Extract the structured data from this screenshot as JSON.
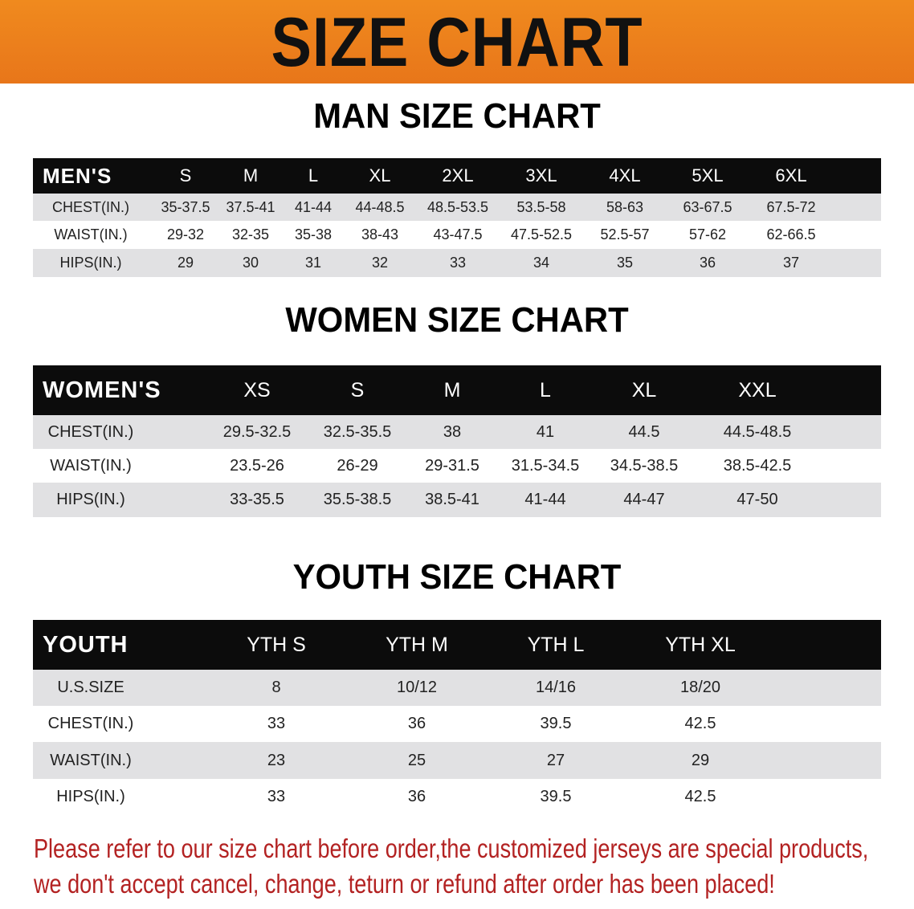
{
  "banner_title": "SIZE CHART",
  "men": {
    "title": "MAN SIZE CHART",
    "header": [
      "MEN'S",
      "S",
      "M",
      "L",
      "XL",
      "2XL",
      "3XL",
      "4XL",
      "5XL",
      "6XL"
    ],
    "rows": [
      [
        "CHEST(IN.)",
        "35-37.5",
        "37.5-41",
        "41-44",
        "44-48.5",
        "48.5-53.5",
        "53.5-58",
        "58-63",
        "63-67.5",
        "67.5-72"
      ],
      [
        "WAIST(IN.)",
        "29-32",
        "32-35",
        "35-38",
        "38-43",
        "43-47.5",
        "47.5-52.5",
        "52.5-57",
        "57-62",
        "62-66.5"
      ],
      [
        "HIPS(IN.)",
        "29",
        "30",
        "31",
        "32",
        "33",
        "34",
        "35",
        "36",
        "37"
      ]
    ]
  },
  "women": {
    "title": "WOMEN SIZE CHART",
    "header": [
      "WOMEN'S",
      "XS",
      "S",
      "M",
      "L",
      "XL",
      "XXL"
    ],
    "rows": [
      [
        "CHEST(IN.)",
        "29.5-32.5",
        "32.5-35.5",
        "38",
        "41",
        "44.5",
        "44.5-48.5"
      ],
      [
        "WAIST(IN.)",
        "23.5-26",
        "26-29",
        "29-31.5",
        "31.5-34.5",
        "34.5-38.5",
        "38.5-42.5"
      ],
      [
        "HIPS(IN.)",
        "33-35.5",
        "35.5-38.5",
        "38.5-41",
        "41-44",
        "44-47",
        "47-50"
      ]
    ]
  },
  "youth": {
    "title": "YOUTH SIZE CHART",
    "header": [
      "YOUTH",
      "YTH S",
      "YTH M",
      "YTH L",
      "YTH XL"
    ],
    "rows": [
      [
        "U.S.SIZE",
        "8",
        "10/12",
        "14/16",
        "18/20"
      ],
      [
        "CHEST(IN.)",
        "33",
        "36",
        "39.5",
        "42.5"
      ],
      [
        "WAIST(IN.)",
        "23",
        "25",
        "27",
        "29"
      ],
      [
        "HIPS(IN.)",
        "33",
        "36",
        "39.5",
        "42.5"
      ]
    ]
  },
  "note": {
    "line1": "Please refer to our size chart before order,the customized jerseys are special products,",
    "line2": "we don't accept cancel, change, teturn or refund after order has been placed!"
  },
  "colors": {
    "banner": "#ec7f1c",
    "header_row": "#0c0c0c",
    "stripe": "#e1e1e3",
    "note": "#b32222"
  }
}
